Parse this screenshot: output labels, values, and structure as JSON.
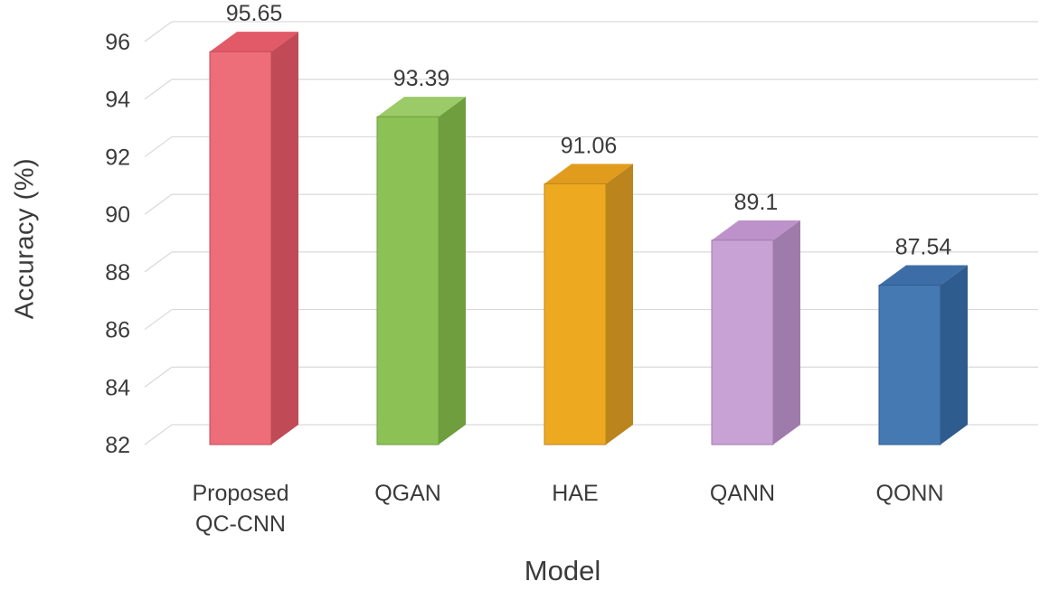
{
  "chart_data": {
    "type": "bar",
    "style": "3d",
    "title": "",
    "xlabel": "Model",
    "ylabel": "Accuracy (%)",
    "categories": [
      [
        "Proposed",
        "QC-CNN"
      ],
      [
        "QGAN"
      ],
      [
        "HAE"
      ],
      [
        "QANN"
      ],
      [
        "QONN"
      ]
    ],
    "values": [
      95.65,
      93.39,
      91.06,
      89.1,
      87.54
    ],
    "value_labels": [
      "95.65",
      "93.39",
      "91.06",
      "89.1",
      "87.54"
    ],
    "ylim": [
      82,
      96
    ],
    "yticks": [
      82,
      84,
      86,
      88,
      90,
      92,
      94,
      96
    ],
    "ytick_step": 2,
    "grid": true,
    "legend": "none",
    "gridline_color": "#d9d9d9",
    "text_color": "#3b3b3b",
    "bar_colors": [
      {
        "front": "#ed6d78",
        "top": "#e25a67",
        "side": "#c04b57"
      },
      {
        "front": "#8cc155",
        "top": "#9bca68",
        "side": "#6e9e3e"
      },
      {
        "front": "#edaa21",
        "top": "#e29c1d",
        "side": "#bb841c"
      },
      {
        "front": "#c8a2d4",
        "top": "#bd92ca",
        "side": "#9f7bab"
      },
      {
        "front": "#4579b2",
        "top": "#3d6da6",
        "side": "#2f5c8e"
      }
    ]
  }
}
